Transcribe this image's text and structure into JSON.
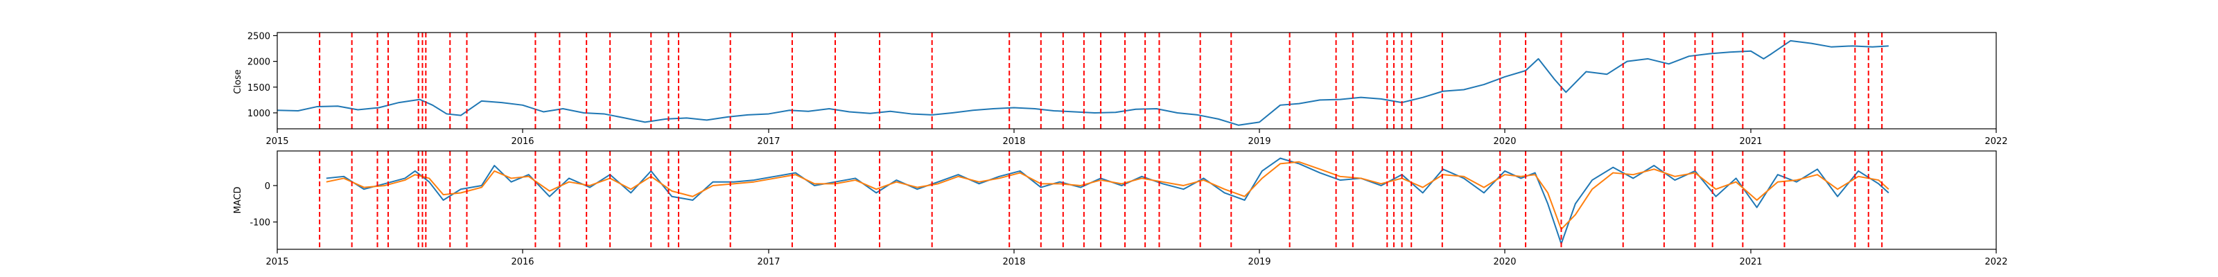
{
  "chart_data": [
    {
      "type": "line",
      "ylabel": "Close",
      "xlim": [
        "2015-01-01",
        "2022-01-01"
      ],
      "ylim": [
        690,
        2560
      ],
      "x_ticks": [
        "2015-01-01",
        "2016-01-01",
        "2017-01-01",
        "2018-01-01",
        "2019-01-01",
        "2020-01-01",
        "2021-01-01",
        "2022-01-01"
      ],
      "x_tick_labels": [
        "2015",
        "2016",
        "2017",
        "2018",
        "2019",
        "2020",
        "2021",
        "2022"
      ],
      "y_ticks": [
        1000,
        1500,
        2000,
        2500
      ],
      "y_tick_labels": [
        "1000",
        "1500",
        "2000",
        "2500"
      ],
      "series": [
        {
          "color": "#1f77b4",
          "x": [
            "2015-01-01",
            "2015-02-01",
            "2015-03-01",
            "2015-04-01",
            "2015-05-01",
            "2015-06-01",
            "2015-07-01",
            "2015-08-01",
            "2015-08-20",
            "2015-09-10",
            "2015-10-01",
            "2015-11-01",
            "2015-12-01",
            "2016-01-01",
            "2016-02-01",
            "2016-03-01",
            "2016-04-01",
            "2016-05-01",
            "2016-06-01",
            "2016-07-01",
            "2016-08-01",
            "2016-09-01",
            "2016-10-01",
            "2016-11-01",
            "2016-12-01",
            "2017-01-01",
            "2017-02-01",
            "2017-03-01",
            "2017-04-01",
            "2017-05-01",
            "2017-06-01",
            "2017-07-01",
            "2017-08-01",
            "2017-09-01",
            "2017-10-01",
            "2017-11-01",
            "2017-12-01",
            "2018-01-01",
            "2018-02-01",
            "2018-03-01",
            "2018-04-01",
            "2018-05-01",
            "2018-06-01",
            "2018-07-01",
            "2018-08-01",
            "2018-09-01",
            "2018-10-01",
            "2018-11-01",
            "2018-12-01",
            "2019-01-01",
            "2019-02-01",
            "2019-03-01",
            "2019-04-01",
            "2019-05-01",
            "2019-06-01",
            "2019-07-01",
            "2019-08-01",
            "2019-09-01",
            "2019-10-01",
            "2019-11-01",
            "2019-12-01",
            "2020-01-01",
            "2020-02-01",
            "2020-02-20",
            "2020-03-15",
            "2020-04-01",
            "2020-05-01",
            "2020-06-01",
            "2020-07-01",
            "2020-08-01",
            "2020-09-01",
            "2020-10-01",
            "2020-11-01",
            "2020-12-01",
            "2021-01-01",
            "2021-01-20",
            "2021-02-01",
            "2021-03-01",
            "2021-04-01",
            "2021-05-01",
            "2021-06-01",
            "2021-07-01",
            "2021-07-25"
          ],
          "values": [
            1050,
            1040,
            1120,
            1130,
            1060,
            1100,
            1200,
            1260,
            1150,
            980,
            950,
            1230,
            1200,
            1150,
            1020,
            1080,
            1000,
            980,
            900,
            820,
            880,
            900,
            860,
            920,
            960,
            980,
            1050,
            1030,
            1080,
            1020,
            990,
            1030,
            980,
            960,
            1000,
            1050,
            1080,
            1100,
            1080,
            1040,
            1020,
            1000,
            1010,
            1070,
            1080,
            1000,
            960,
            880,
            760,
            820,
            1150,
            1180,
            1250,
            1260,
            1300,
            1270,
            1200,
            1300,
            1420,
            1450,
            1550,
            1700,
            1820,
            2050,
            1650,
            1400,
            1800,
            1750,
            2000,
            2050,
            1950,
            2100,
            2150,
            2180,
            2200,
            2050,
            2150,
            2400,
            2350,
            2280,
            2300,
            2280,
            2300
          ]
        }
      ],
      "vlines": {
        "color": "#ff0000",
        "dates": [
          "2015-03-05",
          "2015-04-22",
          "2015-05-30",
          "2015-06-15",
          "2015-07-30",
          "2015-08-05",
          "2015-08-10",
          "2015-09-15",
          "2015-10-10",
          "2016-01-20",
          "2016-02-25",
          "2016-04-05",
          "2016-05-10",
          "2016-07-10",
          "2016-08-05",
          "2016-08-20",
          "2016-11-05",
          "2017-02-05",
          "2017-04-10",
          "2017-06-15",
          "2017-09-01",
          "2017-12-25",
          "2018-02-10",
          "2018-03-15",
          "2018-04-15",
          "2018-05-10",
          "2018-06-15",
          "2018-07-15",
          "2018-08-05",
          "2018-10-05",
          "2018-11-20",
          "2019-02-15",
          "2019-04-25",
          "2019-05-20",
          "2019-07-10",
          "2019-07-20",
          "2019-08-01",
          "2019-08-15",
          "2019-09-30",
          "2019-12-25",
          "2020-02-01",
          "2020-03-25",
          "2020-06-25",
          "2020-08-25",
          "2020-10-10",
          "2020-11-05",
          "2020-12-20",
          "2021-02-20",
          "2021-06-05",
          "2021-06-25",
          "2021-07-15"
        ]
      }
    },
    {
      "type": "line",
      "ylabel": "MACD",
      "xlim": [
        "2015-01-01",
        "2022-01-01"
      ],
      "ylim": [
        -175,
        95
      ],
      "x_ticks": [
        "2015-01-01",
        "2016-01-01",
        "2017-01-01",
        "2018-01-01",
        "2019-01-01",
        "2020-01-01",
        "2021-01-01",
        "2022-01-01"
      ],
      "x_tick_labels": [
        "2015",
        "2016",
        "2017",
        "2018",
        "2019",
        "2020",
        "2021",
        "2022"
      ],
      "y_ticks": [
        -100,
        0
      ],
      "y_tick_labels": [
        "-100",
        "0"
      ],
      "series": [
        {
          "color": "#1f77b4",
          "x": [
            "2015-03-15",
            "2015-04-10",
            "2015-05-10",
            "2015-06-10",
            "2015-07-10",
            "2015-07-25",
            "2015-08-15",
            "2015-09-05",
            "2015-10-01",
            "2015-11-01",
            "2015-11-20",
            "2015-12-15",
            "2016-01-10",
            "2016-02-10",
            "2016-03-10",
            "2016-04-10",
            "2016-05-10",
            "2016-06-10",
            "2016-07-10",
            "2016-08-10",
            "2016-09-10",
            "2016-10-10",
            "2016-11-10",
            "2016-12-10",
            "2017-01-10",
            "2017-02-10",
            "2017-03-10",
            "2017-04-10",
            "2017-05-10",
            "2017-06-10",
            "2017-07-10",
            "2017-08-10",
            "2017-09-10",
            "2017-10-10",
            "2017-11-10",
            "2017-12-10",
            "2018-01-10",
            "2018-02-10",
            "2018-03-10",
            "2018-04-10",
            "2018-05-10",
            "2018-06-10",
            "2018-07-10",
            "2018-08-10",
            "2018-09-10",
            "2018-10-10",
            "2018-11-10",
            "2018-12-10",
            "2019-01-05",
            "2019-02-01",
            "2019-03-01",
            "2019-04-01",
            "2019-05-01",
            "2019-06-01",
            "2019-07-01",
            "2019-08-01",
            "2019-09-01",
            "2019-10-01",
            "2019-11-01",
            "2019-12-01",
            "2020-01-01",
            "2020-01-25",
            "2020-02-15",
            "2020-03-05",
            "2020-03-25",
            "2020-04-15",
            "2020-05-10",
            "2020-06-10",
            "2020-07-10",
            "2020-08-10",
            "2020-09-10",
            "2020-10-10",
            "2020-11-10",
            "2020-12-10",
            "2021-01-10",
            "2021-02-10",
            "2021-03-10",
            "2021-04-10",
            "2021-05-10",
            "2021-06-10",
            "2021-07-10",
            "2021-07-25"
          ],
          "values": [
            20,
            25,
            -10,
            5,
            20,
            40,
            10,
            -40,
            -10,
            0,
            55,
            10,
            30,
            -30,
            20,
            -5,
            30,
            -20,
            40,
            -30,
            -40,
            10,
            10,
            15,
            25,
            35,
            0,
            10,
            20,
            -20,
            15,
            -10,
            10,
            30,
            5,
            25,
            40,
            -5,
            10,
            -5,
            20,
            0,
            25,
            5,
            -10,
            20,
            -20,
            -40,
            40,
            75,
            60,
            35,
            15,
            20,
            0,
            30,
            -20,
            45,
            20,
            -20,
            40,
            20,
            35,
            -50,
            -160,
            -50,
            15,
            50,
            20,
            55,
            15,
            40,
            -30,
            20,
            -60,
            30,
            10,
            45,
            -30,
            40,
            5,
            -20
          ],
          "linewidth": 2
        },
        {
          "color": "#ff7f0e",
          "x": [
            "2015-03-15",
            "2015-04-10",
            "2015-05-10",
            "2015-06-10",
            "2015-07-10",
            "2015-07-25",
            "2015-08-15",
            "2015-09-05",
            "2015-10-01",
            "2015-11-01",
            "2015-11-20",
            "2015-12-15",
            "2016-01-10",
            "2016-02-10",
            "2016-03-10",
            "2016-04-10",
            "2016-05-10",
            "2016-06-10",
            "2016-07-10",
            "2016-08-10",
            "2016-09-10",
            "2016-10-10",
            "2016-11-10",
            "2016-12-10",
            "2017-01-10",
            "2017-02-10",
            "2017-03-10",
            "2017-04-10",
            "2017-05-10",
            "2017-06-10",
            "2017-07-10",
            "2017-08-10",
            "2017-09-10",
            "2017-10-10",
            "2017-11-10",
            "2017-12-10",
            "2018-01-10",
            "2018-02-10",
            "2018-03-10",
            "2018-04-10",
            "2018-05-10",
            "2018-06-10",
            "2018-07-10",
            "2018-08-10",
            "2018-09-10",
            "2018-10-10",
            "2018-11-10",
            "2018-12-10",
            "2019-01-05",
            "2019-02-01",
            "2019-03-01",
            "2019-04-01",
            "2019-05-01",
            "2019-06-01",
            "2019-07-01",
            "2019-08-01",
            "2019-09-01",
            "2019-10-01",
            "2019-11-01",
            "2019-12-01",
            "2020-01-01",
            "2020-01-25",
            "2020-02-15",
            "2020-03-05",
            "2020-03-25",
            "2020-04-15",
            "2020-05-10",
            "2020-06-10",
            "2020-07-10",
            "2020-08-10",
            "2020-09-10",
            "2020-10-10",
            "2020-11-10",
            "2020-12-10",
            "2021-01-10",
            "2021-02-10",
            "2021-03-10",
            "2021-04-10",
            "2021-05-10",
            "2021-06-10",
            "2021-07-10",
            "2021-07-25"
          ],
          "values": [
            10,
            20,
            -5,
            0,
            15,
            30,
            20,
            -25,
            -20,
            -5,
            40,
            20,
            25,
            -15,
            10,
            0,
            20,
            -10,
            25,
            -15,
            -30,
            0,
            5,
            10,
            20,
            30,
            5,
            5,
            15,
            -10,
            10,
            -5,
            5,
            25,
            10,
            20,
            35,
            5,
            5,
            0,
            15,
            5,
            20,
            10,
            0,
            15,
            -10,
            -30,
            20,
            60,
            65,
            45,
            25,
            20,
            5,
            20,
            -5,
            30,
            25,
            -5,
            30,
            25,
            30,
            -20,
            -120,
            -80,
            -10,
            35,
            30,
            45,
            25,
            35,
            -10,
            10,
            -40,
            10,
            15,
            30,
            -10,
            25,
            15,
            -10
          ],
          "linewidth": 2
        }
      ],
      "vlines": {
        "color": "#ff0000",
        "dates": [
          "2015-03-05",
          "2015-04-22",
          "2015-05-30",
          "2015-06-15",
          "2015-07-30",
          "2015-08-05",
          "2015-08-10",
          "2015-09-15",
          "2015-10-10",
          "2016-01-20",
          "2016-02-25",
          "2016-04-05",
          "2016-05-10",
          "2016-07-10",
          "2016-08-05",
          "2016-08-20",
          "2016-11-05",
          "2017-02-05",
          "2017-04-10",
          "2017-06-15",
          "2017-09-01",
          "2017-12-25",
          "2018-02-10",
          "2018-03-15",
          "2018-04-15",
          "2018-05-10",
          "2018-06-15",
          "2018-07-15",
          "2018-08-05",
          "2018-10-05",
          "2018-11-20",
          "2019-02-15",
          "2019-04-25",
          "2019-05-20",
          "2019-07-10",
          "2019-07-20",
          "2019-08-01",
          "2019-08-15",
          "2019-09-30",
          "2019-12-25",
          "2020-02-01",
          "2020-03-25",
          "2020-06-25",
          "2020-08-25",
          "2020-10-10",
          "2020-11-05",
          "2020-12-20",
          "2021-02-20",
          "2021-06-05",
          "2021-06-25",
          "2021-07-15"
        ]
      }
    }
  ]
}
